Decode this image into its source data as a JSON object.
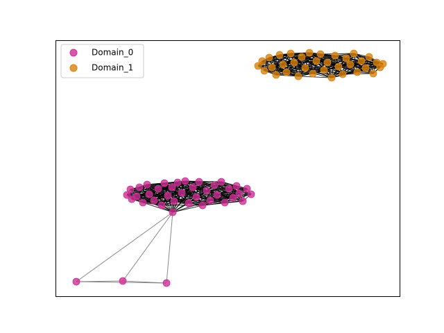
{
  "chart_data": {
    "type": "network",
    "xlim": [
      0,
      496
    ],
    "ylim": [
      0,
      369
    ],
    "legend": "upper left",
    "series": [
      {
        "name": "Domain_0",
        "color": "#cc2f95",
        "x": [
          103,
          108,
          110,
          117,
          121,
          126,
          132,
          135,
          142,
          148,
          153,
          157,
          162,
          168,
          171,
          176,
          182,
          187,
          192,
          198,
          203,
          207,
          212,
          218,
          223,
          229,
          233,
          239,
          244,
          250,
          256,
          261,
          265,
          270,
          276,
          282,
          169,
          30,
          97,
          160
        ],
        "y": [
          146,
          154,
          140,
          144,
          157,
          135,
          161,
          147,
          138,
          155,
          131,
          163,
          145,
          157,
          137,
          164,
          149,
          166,
          134,
          157,
          143,
          165,
          131,
          152,
          138,
          160,
          146,
          165,
          135,
          155,
          142,
          159,
          148,
          137,
          155,
          147,
          121,
          21,
          22,
          19
        ],
        "edges": [
          [
            36,
            37
          ],
          [
            36,
            38
          ],
          [
            36,
            39
          ],
          [
            37,
            38
          ],
          [
            38,
            39
          ],
          [
            37,
            39
          ]
        ]
      },
      {
        "name": "Domain_1",
        "color": "#d9820f",
        "x": [
          292,
          298,
          301,
          308,
          312,
          318,
          323,
          328,
          333,
          339,
          344,
          350,
          355,
          360,
          366,
          371,
          376,
          382,
          387,
          392,
          398,
          403,
          408,
          414,
          419,
          425,
          430,
          435,
          441,
          447,
          452,
          458,
          463,
          468,
          472
        ],
        "y": [
          332,
          339,
          325,
          344,
          330,
          319,
          348,
          334,
          323,
          350,
          337,
          317,
          345,
          329,
          351,
          321,
          339,
          349,
          326,
          337,
          315,
          347,
          331,
          320,
          343,
          334,
          350,
          323,
          339,
          329,
          345,
          321,
          337,
          330,
          335
        ]
      }
    ]
  }
}
